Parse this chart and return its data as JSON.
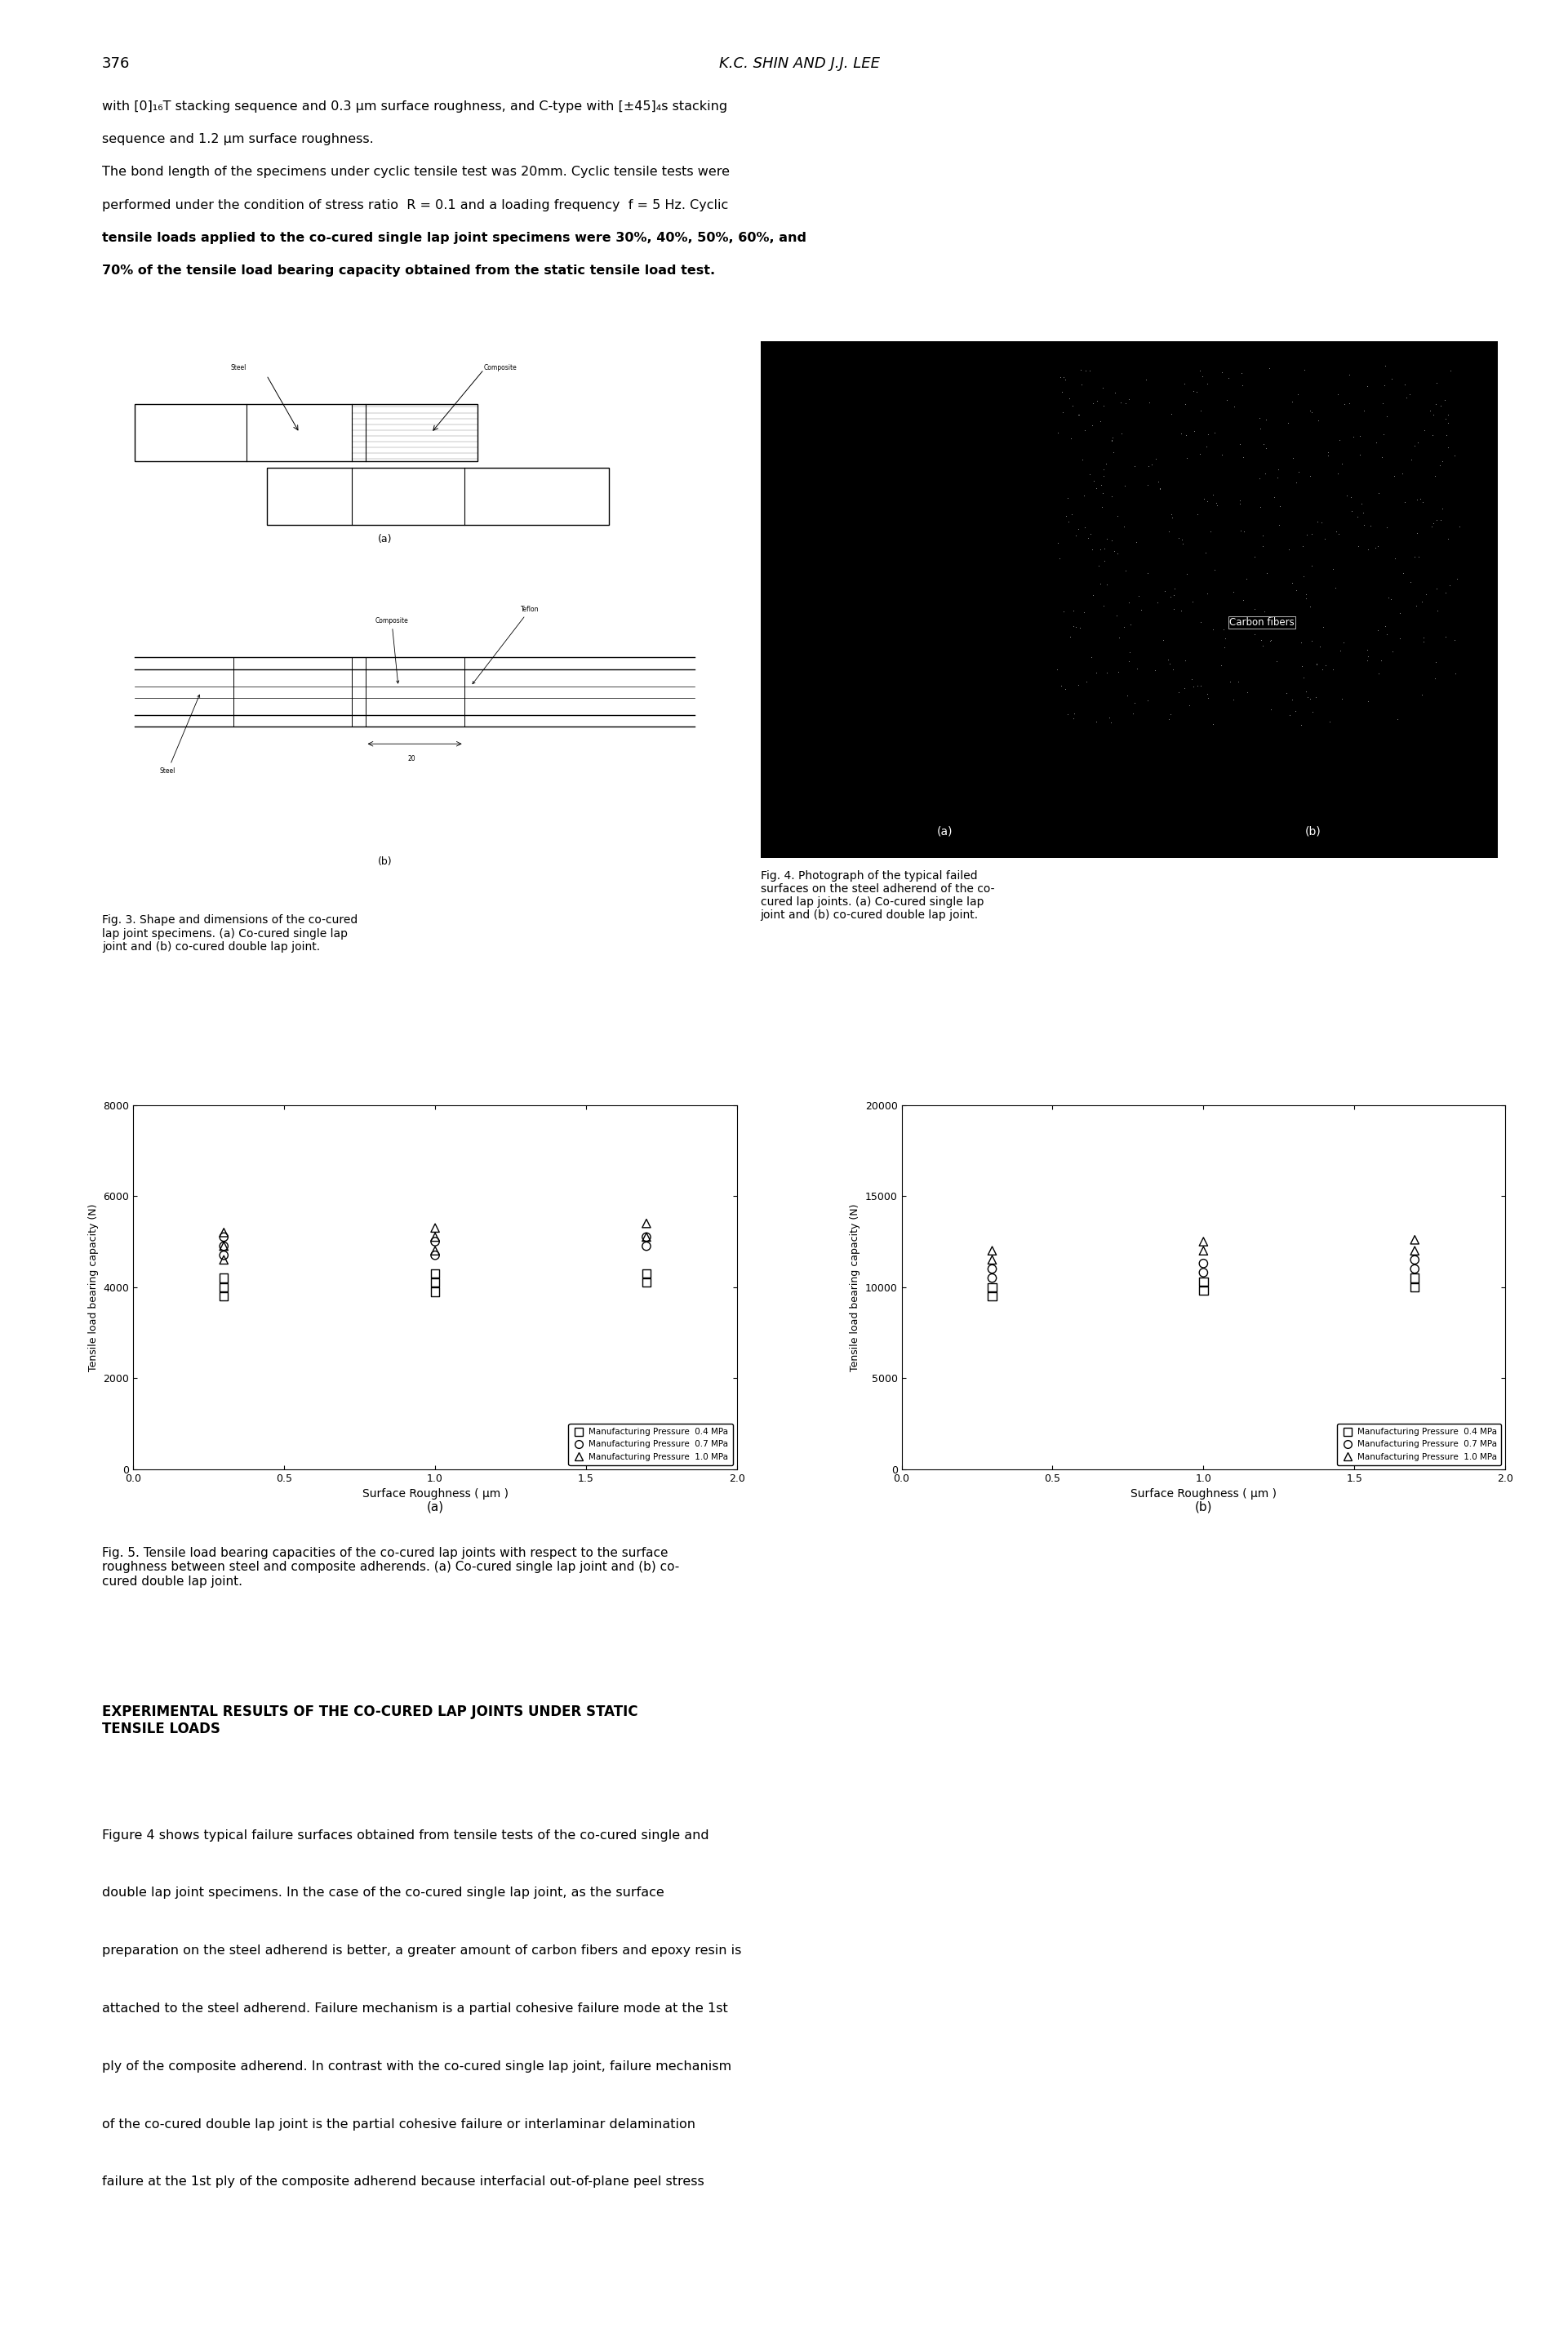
{
  "page_width": 19.21,
  "page_height": 28.8,
  "background_color": "#ffffff",
  "page_number": "376",
  "page_header": "K.C. SHIN AND J.J. LEE",
  "top_text": [
    {
      "text": "with [0]",
      "bold": false,
      "fontsize": 12
    },
    {
      "text": "sequence and 1.2 μm surface roughness.",
      "bold": false,
      "fontsize": 12
    },
    {
      "text": "The bond length of the specimens under cyclic tensile test was 20mm. Cyclic tensile tests were",
      "bold": false,
      "fontsize": 12
    },
    {
      "text": "performed under the condition of stress ratio  R = 0.1 and a loading frequency  f = 5 Hz. Cyclic",
      "bold": false,
      "fontsize": 12
    },
    {
      "text": "tensile loads applied to the co-cured single lap joint specimens were 30%, 40%, 50%, 60%, and",
      "bold": true,
      "fontsize": 12
    },
    {
      "text": "70% of the tensile load bearing capacity obtained from the static tensile load test.",
      "bold": true,
      "fontsize": 12
    }
  ],
  "caption_fig3": "Fig. 3. Shape and dimensions of the co-cured\nlap joint specimens. (a) Co-cured single lap\njoint and (b) co-cured double lap joint.",
  "caption_fig4": "Fig. 4. Photograph of the typical failed\nsurfaces on the steel adherend of the co-\ncured lap joints. (a) Co-cured single lap\njoint and (b) co-cured double lap joint.",
  "caption_fig5": "Fig. 5. Tensile load bearing capacities of the co-cured lap joints with respect to the surface\nroughness between steel and composite adherends. (a) Co-cured single lap joint and (b) co-\ncured double lap joint.",
  "bottom_heading": "EXPERIMENTAL RESULTS OF THE CO-CURED LAP JOINTS UNDER STATIC\nTENSILE LOADS",
  "bottom_body": [
    "Figure 4 shows typical failure surfaces obtained from tensile tests of the co-cured single and",
    "double lap joint specimens. In the case of the co-cured single lap joint, as the surface",
    "preparation on the steel adherend is better, a greater amount of carbon fibers and epoxy resin is",
    "attached to the steel adherend. Failure mechanism is a partial cohesive failure mode at the 1st",
    "ply of the composite adherend. In contrast with the co-cured single lap joint, failure mechanism",
    "of the co-cured double lap joint is the partial cohesive failure or interlaminar delamination",
    "failure at the 1st ply of the composite adherend because interfacial out-of-plane peel stress"
  ],
  "plot_a": {
    "xlabel": "Surface Roughness ( μm )",
    "ylabel": "Tensile load bearing capacity (N)",
    "xlim": [
      0.0,
      2.0
    ],
    "ylim": [
      0,
      8000
    ],
    "yticks": [
      0,
      2000,
      4000,
      6000,
      8000
    ],
    "xticks": [
      0.0,
      0.5,
      1.0,
      1.5,
      2.0
    ],
    "xtick_labels": [
      "0.0",
      "0.5",
      "1.0",
      "1.5",
      "2.0"
    ],
    "ytick_labels": [
      "0",
      "2000",
      "4000",
      "6000",
      "8000"
    ],
    "legend_loc": "lower right",
    "series": [
      {
        "label": "Manufacturing Pressure  0.4 MPa",
        "marker": "s",
        "x": [
          0.3,
          0.3,
          0.3,
          1.0,
          1.0,
          1.0,
          1.7,
          1.7
        ],
        "y": [
          3800,
          4000,
          4200,
          3900,
          4100,
          4300,
          4100,
          4300
        ]
      },
      {
        "label": "Manufacturing Pressure  0.7 MPa",
        "marker": "o",
        "x": [
          0.3,
          0.3,
          0.3,
          1.0,
          1.0,
          1.7,
          1.7
        ],
        "y": [
          4700,
          4900,
          5100,
          4700,
          5000,
          4900,
          5100
        ]
      },
      {
        "label": "Manufacturing Pressure  1.0 MPa",
        "marker": "^",
        "x": [
          0.3,
          0.3,
          0.3,
          1.0,
          1.0,
          1.0,
          1.7,
          1.7
        ],
        "y": [
          4600,
          4900,
          5200,
          4800,
          5100,
          5300,
          5100,
          5400
        ]
      }
    ]
  },
  "plot_b": {
    "xlabel": "Surface Roughness ( μm )",
    "ylabel": "Tensile load bearing capacity (N)",
    "xlim": [
      0.0,
      2.0
    ],
    "ylim": [
      0,
      20000
    ],
    "yticks": [
      0,
      5000,
      10000,
      15000,
      20000
    ],
    "xticks": [
      0.0,
      0.5,
      1.0,
      1.5,
      2.0
    ],
    "xtick_labels": [
      "0.0",
      "0.5",
      "1.0",
      "1.5",
      "2.0"
    ],
    "ytick_labels": [
      "0",
      "5000",
      "10000",
      "15000",
      "20000"
    ],
    "legend_loc": "lower right",
    "series": [
      {
        "label": "Manufacturing Pressure  0.4 MPa",
        "marker": "s",
        "x": [
          0.3,
          0.3,
          1.0,
          1.0,
          1.7,
          1.7
        ],
        "y": [
          9500,
          10000,
          9800,
          10300,
          10000,
          10500
        ]
      },
      {
        "label": "Manufacturing Pressure  0.7 MPa",
        "marker": "o",
        "x": [
          0.3,
          0.3,
          1.0,
          1.0,
          1.7,
          1.7
        ],
        "y": [
          10500,
          11000,
          10800,
          11300,
          11000,
          11500
        ]
      },
      {
        "label": "Manufacturing Pressure  1.0 MPa",
        "marker": "^",
        "x": [
          0.3,
          0.3,
          1.0,
          1.0,
          1.7,
          1.7
        ],
        "y": [
          11500,
          12000,
          12000,
          12500,
          12000,
          12600
        ]
      }
    ]
  }
}
